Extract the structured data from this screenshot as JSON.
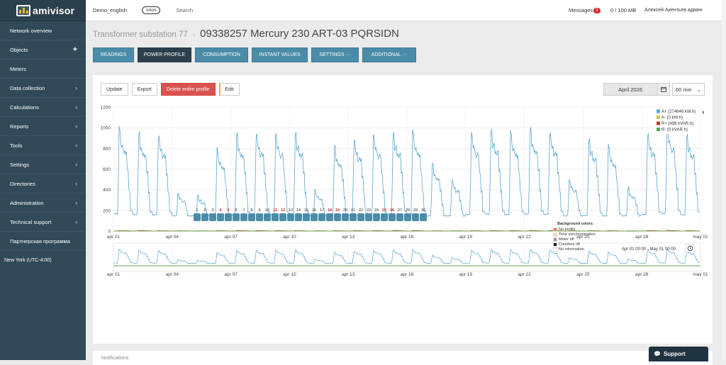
{
  "app": {
    "logo_text": "amivisor"
  },
  "sidebar": {
    "items": [
      {
        "label": "Network overview",
        "icon": ""
      },
      {
        "label": "Objects",
        "icon": "+"
      },
      {
        "label": "Meters",
        "icon": ""
      },
      {
        "label": "Data collection",
        "icon": "›"
      },
      {
        "label": "Calculations",
        "icon": "›"
      },
      {
        "label": "Reports",
        "icon": "›"
      },
      {
        "label": "Tools",
        "icon": "›"
      },
      {
        "label": "Settings",
        "icon": "›"
      },
      {
        "label": "Directories",
        "icon": "›"
      },
      {
        "label": "Administration",
        "icon": "›"
      },
      {
        "label": "Technical support",
        "icon": "›"
      },
      {
        "label": "Партнерская программа",
        "icon": ""
      }
    ],
    "timezone": "New York (UTC-4:00)"
  },
  "topbar": {
    "account": "Demo_english",
    "tag": "orion",
    "search_placeholder": "Search",
    "messages_label": "Messages",
    "messages_count": "3",
    "quota": "0 / 100 MB",
    "user": "Алексей Акентьев админ"
  },
  "page": {
    "breadcrumb": "Transformer substation 77",
    "separator": "›",
    "title": "09338257 Mercury 230 ART-03 PQRSIDN"
  },
  "tabs": [
    {
      "label": "READINGS",
      "active": false
    },
    {
      "label": "POWER PROFILE",
      "active": true
    },
    {
      "label": "CONSUMPTION",
      "active": false
    },
    {
      "label": "INSTANT VALUES",
      "active": false
    },
    {
      "label": "SETTINGS ···",
      "active": false
    },
    {
      "label": "ADDITIONAL ···",
      "active": false
    }
  ],
  "toolbar": {
    "update": "Update",
    "export": "Export",
    "delete": "Delete entire profile",
    "edit": "Edit",
    "month": "April 2026",
    "interval": "60 min"
  },
  "chart_data": {
    "type": "line",
    "ylim": [
      0,
      1200
    ],
    "yticks": [
      "0",
      "200",
      "400",
      "600",
      "800",
      "1000",
      "1200"
    ],
    "xticks": [
      "apr 01",
      "apr 04",
      "apr 07",
      "apr 10",
      "apr 13",
      "apr 16",
      "apr 19",
      "apr 22",
      "apr 25",
      "apr 28",
      "may 01"
    ],
    "legend_position": "top-right",
    "series": [
      {
        "name": "A+ (274846 kW.h)",
        "color": "#5ba7cf",
        "daily_peaks": [
          1000,
          950,
          940,
          370,
          350,
          800,
          940,
          960,
          950,
          960,
          400,
          820,
          900,
          940,
          960,
          970,
          650,
          500,
          960,
          990,
          960,
          990,
          970,
          500,
          900,
          830,
          420,
          960,
          1020,
          940
        ]
      },
      {
        "name": "A- (0 kW.h)",
        "color": "#d2c44a",
        "daily_peaks": [
          0,
          0,
          0,
          0,
          0,
          0,
          0,
          0,
          0,
          0,
          0,
          0,
          0,
          0,
          0,
          0,
          0,
          0,
          0,
          0,
          0,
          0,
          0,
          0,
          0,
          0,
          0,
          0,
          0,
          0
        ]
      },
      {
        "name": "R+ (498 kVAR.h)",
        "color": "#c0392b",
        "daily_peaks": [
          5,
          6,
          4,
          3,
          2,
          4,
          6,
          5,
          5,
          4,
          3,
          4,
          5,
          5,
          6,
          5,
          3,
          3,
          4,
          5,
          5,
          6,
          5,
          3,
          4,
          4,
          2,
          5,
          6,
          5
        ]
      },
      {
        "name": "R- (0 kVAR.h)",
        "color": "#4caf50",
        "daily_peaks": [
          0,
          0,
          0,
          0,
          0,
          0,
          0,
          0,
          0,
          0,
          0,
          0,
          0,
          0,
          0,
          0,
          0,
          0,
          0,
          0,
          0,
          0,
          0,
          0,
          0,
          0,
          0,
          0,
          0,
          0
        ]
      }
    ],
    "navigator": {
      "range_label": "Apr 01 00:00 - May 01 00:00"
    }
  },
  "days": {
    "labels": [
      "1",
      "2",
      "3",
      "4",
      "5",
      "6",
      "7",
      "8",
      "9",
      "10",
      "11",
      "12",
      "13",
      "14",
      "15",
      "16",
      "17",
      "18",
      "19",
      "20",
      "21",
      "22",
      "23",
      "24",
      "25",
      "26",
      "27",
      "28",
      "29",
      "30"
    ],
    "red": [
      4,
      5,
      11,
      12,
      18,
      19,
      25,
      26
    ]
  },
  "background_colors": {
    "title": "Background colors",
    "items": [
      {
        "label": "No profile",
        "color": "#e67e50"
      },
      {
        "label": "Time synchronization",
        "color": "#f5d9a8"
      },
      {
        "label": "Meter off",
        "color": "#9a9a9a"
      },
      {
        "label": "Counters off",
        "color": "#222222"
      },
      {
        "label": "No information",
        "color": "#ffffff"
      }
    ]
  },
  "notifications": {
    "label": "Notifications"
  },
  "support": {
    "label": "Support"
  }
}
